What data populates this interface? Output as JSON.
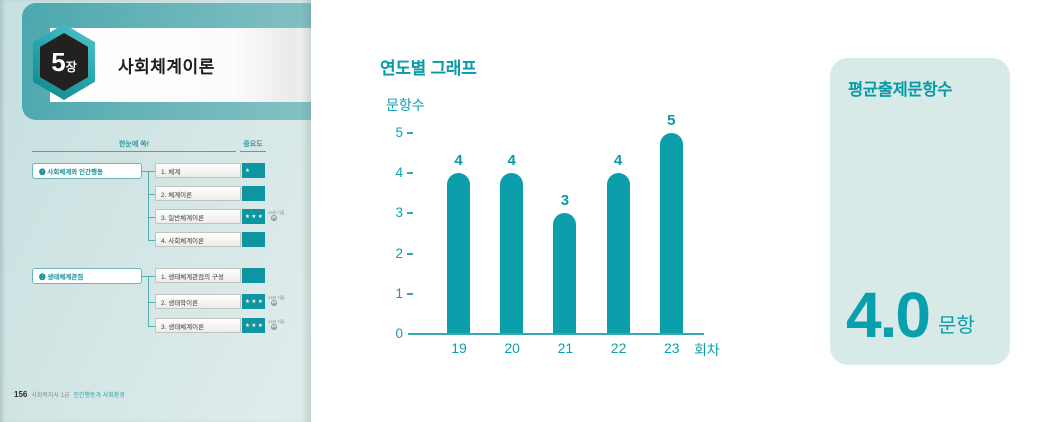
{
  "colors": {
    "accent_teal": "#0a9fab",
    "panel_teal": "#4aa8ae",
    "page_bg": "#d2e5e4",
    "card_bg": "#d7eae7",
    "importance_box": "#0d96a1",
    "hex_dark": "#232020"
  },
  "book_page": {
    "chapter_badge": {
      "number": "5",
      "suffix": "장"
    },
    "chapter_title": "사회체계이론",
    "toc": {
      "header_left": "한눈에 쏙!",
      "header_right": "중요도",
      "badge_text": "23회 기출",
      "groups": [
        {
          "label": "❶ 사회체계와 인간행동",
          "items": [
            {
              "label": "1. 체계",
              "stars": "★",
              "badge": false
            },
            {
              "label": "2. 체계이론",
              "stars": "",
              "badge": false
            },
            {
              "label": "3. 일반체계이론",
              "stars": "★★★",
              "badge": true
            },
            {
              "label": "4. 사회체계이론",
              "stars": "",
              "badge": false
            }
          ]
        },
        {
          "label": "❷ 생태체계관점",
          "items": [
            {
              "label": "1. 생태체계관점의 구성",
              "stars": "",
              "badge": false
            },
            {
              "label": "2. 생태학이론",
              "stars": "★★★",
              "badge": true
            },
            {
              "label": "3. 생태체계이론",
              "stars": "★★★",
              "badge": true
            }
          ]
        }
      ]
    },
    "footer": {
      "page_number": "156",
      "book": "사회복지사 1급",
      "subject": "인간행동과 사회환경"
    }
  },
  "chart_data": {
    "type": "bar",
    "title": "연도별 그래프",
    "categories": [
      "19",
      "20",
      "21",
      "22",
      "23"
    ],
    "values": [
      4,
      4,
      3,
      4,
      5
    ],
    "data_labels": [
      "4",
      "4",
      "3",
      "4",
      "5"
    ],
    "xlabel": "회차",
    "ylabel": "문항수",
    "ylim": [
      0,
      5
    ],
    "yticks": [
      0,
      1,
      2,
      3,
      4,
      5
    ],
    "grid": false,
    "legend": null,
    "bar_color": "#0a9fab"
  },
  "stat_card": {
    "title": "평균출제문항수",
    "value": "4.0",
    "unit": "문항"
  }
}
